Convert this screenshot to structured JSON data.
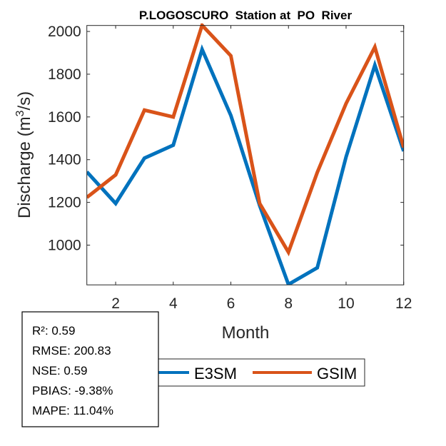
{
  "chart_data": {
    "type": "line",
    "title": "P.LOGOSCURO  Station at  PO  River",
    "xlabel": "Month",
    "ylabel_base": "Discharge (m",
    "ylabel_sup": "3",
    "ylabel_tail": "/s)",
    "xlim": [
      1,
      12
    ],
    "ylim": [
      814,
      2028
    ],
    "xticks": [
      2,
      4,
      6,
      8,
      10,
      12
    ],
    "yticks": [
      1000,
      1200,
      1400,
      1600,
      1800,
      2000
    ],
    "x": [
      1,
      2,
      3,
      4,
      5,
      6,
      7,
      8,
      9,
      10,
      11,
      12
    ],
    "series": [
      {
        "name": "E3SM",
        "color": "#0072BD",
        "values": [
          1343,
          1195,
          1407,
          1468,
          1916,
          1607,
          1185,
          816,
          894,
          1413,
          1842,
          1440
        ]
      },
      {
        "name": "GSIM",
        "color": "#D95319",
        "values": [
          1223,
          1329,
          1632,
          1600,
          2029,
          1886,
          1195,
          967,
          1340,
          1663,
          1927,
          1457
        ]
      }
    ],
    "legend_position": "bottom-outside",
    "stats": [
      "R²: 0.59",
      "RMSE: 200.83",
      "NSE: 0.59",
      "PBIAS: -9.38%",
      "MAPE: 11.04%"
    ]
  }
}
